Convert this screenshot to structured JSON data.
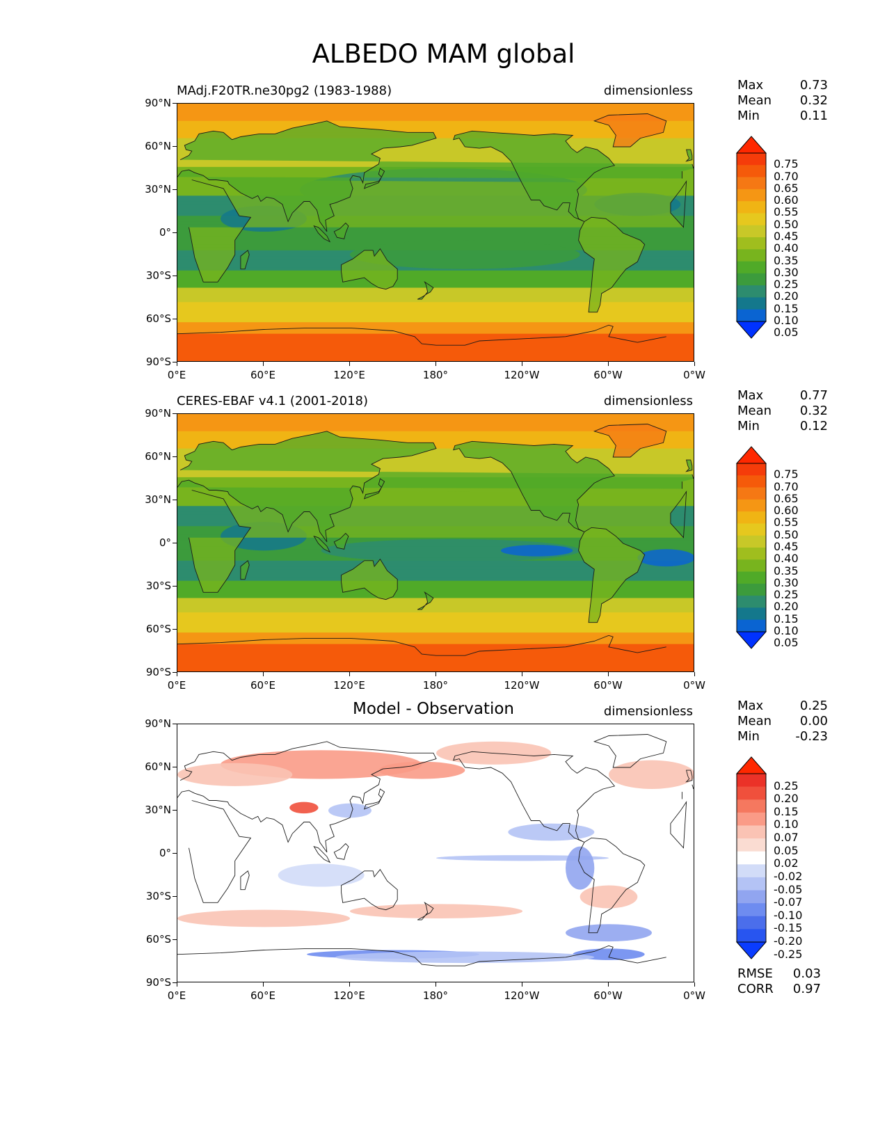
{
  "title": "ALBEDO MAM global",
  "x_ticks": [
    "0°E",
    "60°E",
    "120°E",
    "180°",
    "120°W",
    "60°W",
    "0°W"
  ],
  "y_ticks": [
    "90°N",
    "60°N",
    "30°N",
    "0°",
    "30°S",
    "60°S",
    "90°S"
  ],
  "panels": [
    {
      "title_left": "MAdj.F20TR.ne30pg2 (1983-1988)",
      "title_center": "",
      "units": "dimensionless",
      "stats": {
        "max_label": "Max",
        "max": "0.73",
        "mean_label": "Mean",
        "mean": "0.32",
        "min_label": "Min",
        "min": "0.11"
      },
      "colorbar_labels": [
        "0.75",
        "0.70",
        "0.65",
        "0.60",
        "0.55",
        "0.50",
        "0.45",
        "0.40",
        "0.35",
        "0.30",
        "0.25",
        "0.20",
        "0.15",
        "0.10",
        "0.05"
      ],
      "colormap": "albedo"
    },
    {
      "title_left": "CERES-EBAF v4.1 (2001-2018)",
      "title_center": "",
      "units": "dimensionless",
      "stats": {
        "max_label": "Max",
        "max": "0.77",
        "mean_label": "Mean",
        "mean": "0.32",
        "min_label": "Min",
        "min": "0.12"
      },
      "colorbar_labels": [
        "0.75",
        "0.70",
        "0.65",
        "0.60",
        "0.55",
        "0.50",
        "0.45",
        "0.40",
        "0.35",
        "0.30",
        "0.25",
        "0.20",
        "0.15",
        "0.10",
        "0.05"
      ],
      "colormap": "albedo"
    },
    {
      "title_left": "",
      "title_center": "Model - Observation",
      "units": "dimensionless",
      "stats": {
        "max_label": "Max",
        "max": "0.25",
        "mean_label": "Mean",
        "mean": "0.00",
        "min_label": "Min",
        "min": "-0.23"
      },
      "colorbar_labels": [
        "0.25",
        "0.20",
        "0.15",
        "0.10",
        "0.07",
        "0.05",
        "0.02",
        "-0.02",
        "-0.05",
        "-0.07",
        "-0.10",
        "-0.15",
        "-0.20",
        "-0.25"
      ],
      "colormap": "diff",
      "rmse_label": "RMSE",
      "rmse": "0.03",
      "corr_label": "CORR",
      "corr": "0.97"
    }
  ],
  "colors": {
    "albedo": [
      "#0032ff",
      "#0a64d2",
      "#14788c",
      "#2d8c6e",
      "#3c9b3c",
      "#50aa28",
      "#78b41e",
      "#a0be1e",
      "#c8c828",
      "#e6c81e",
      "#f0b414",
      "#f59614",
      "#f57814",
      "#f55a0a",
      "#f53c0a",
      "#ff2800"
    ],
    "diff": [
      "#0a3cff",
      "#2855f0",
      "#4b6eeb",
      "#6e8cf0",
      "#91a5f0",
      "#b4c3f5",
      "#d2dcf8",
      "#ffffff",
      "#fadcd2",
      "#fac3b4",
      "#fa9b87",
      "#f5785f",
      "#f0503c",
      "#eb3228",
      "#ff2800"
    ]
  }
}
